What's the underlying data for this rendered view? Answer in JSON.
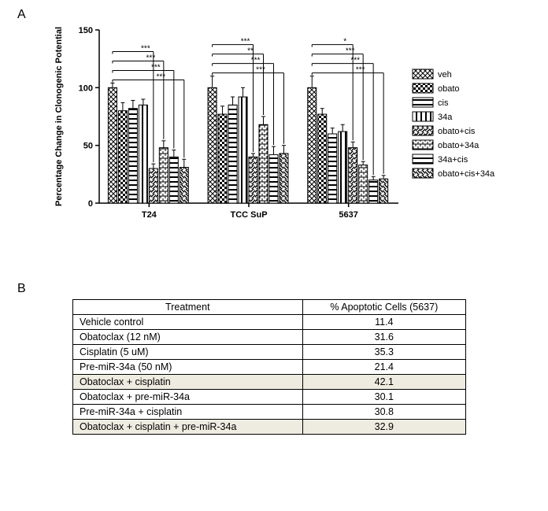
{
  "panelA_label": "A",
  "panelB_label": "B",
  "chart": {
    "type": "bar",
    "ylabel": "Percentage Change in Clonogenic Potential",
    "ylabel_fontsize": 11,
    "ylim": [
      0,
      150
    ],
    "ytick_step": 50,
    "yticks": [
      0,
      50,
      100,
      150
    ],
    "tick_fontsize": 11,
    "axis_color": "#000000",
    "background_color": "#ffffff",
    "bar_outline": "#000000",
    "bar_fill": "#000000",
    "groups": [
      "T24",
      "TCC SuP",
      "5637"
    ],
    "series": [
      {
        "key": "veh",
        "label": "veh",
        "pattern": "crosshatch"
      },
      {
        "key": "obato",
        "label": "obato",
        "pattern": "checker"
      },
      {
        "key": "cis",
        "label": "cis",
        "pattern": "hstripe"
      },
      {
        "key": "34a",
        "label": "34a",
        "pattern": "vstripe"
      },
      {
        "key": "obato_cis",
        "label": "obato+cis",
        "pattern": "diag1"
      },
      {
        "key": "obato_34a",
        "label": "obato+34a",
        "pattern": "brick"
      },
      {
        "key": "34a_cis",
        "label": "34a+cis",
        "pattern": "hstripe2"
      },
      {
        "key": "obato_cis_34a",
        "label": "obato+cis+34a",
        "pattern": "diag2"
      }
    ],
    "data": {
      "T24": {
        "veh": [
          100,
          4
        ],
        "obato": [
          80,
          7
        ],
        "cis": [
          82,
          7
        ],
        "34a": [
          85,
          5
        ],
        "obato_cis": [
          30,
          4
        ],
        "obato_34a": [
          48,
          6
        ],
        "34a_cis": [
          40,
          6
        ],
        "obato_cis_34a": [
          31,
          7
        ]
      },
      "TCC SuP": {
        "veh": [
          100,
          10
        ],
        "obato": [
          77,
          7
        ],
        "cis": [
          85,
          7
        ],
        "34a": [
          92,
          8
        ],
        "obato_cis": [
          40,
          3
        ],
        "obato_34a": [
          68,
          7
        ],
        "34a_cis": [
          42,
          7
        ],
        "obato_cis_34a": [
          43,
          7
        ]
      },
      "5637": {
        "veh": [
          100,
          10
        ],
        "obato": [
          77,
          5
        ],
        "cis": [
          60,
          5
        ],
        "34a": [
          62,
          6
        ],
        "obato_cis": [
          48,
          5
        ],
        "obato_34a": [
          33,
          3
        ],
        "34a_cis": [
          20,
          3
        ],
        "obato_cis_34a": [
          21,
          3
        ]
      }
    },
    "sig_markers": {
      "T24": [
        "***",
        "***",
        "***",
        "***"
      ],
      "TCC SuP": [
        "***",
        "**",
        "***",
        "***"
      ],
      "5637": [
        "*",
        "***",
        "***",
        "***"
      ]
    },
    "sig_base_bar": 0,
    "sig_target_bars": [
      4,
      5,
      6,
      7
    ],
    "bar_width": 0.85,
    "group_gap": 1.8,
    "legend": {
      "box_size": 14,
      "fontsize": 11,
      "position": "right"
    }
  },
  "table": {
    "columns": [
      "Treatment",
      "% Apoptotic Cells (5637)"
    ],
    "rows": [
      {
        "t": "Vehicle control",
        "v": "11.4",
        "hl": false
      },
      {
        "t": "Obatoclax (12 nM)",
        "v": "31.6",
        "hl": false
      },
      {
        "t": "Cisplatin (5 uM)",
        "v": "35.3",
        "hl": false
      },
      {
        "t": "Pre-miR-34a (50 nM)",
        "v": "21.4",
        "hl": false
      },
      {
        "t": "Obatoclax + cisplatin",
        "v": "42.1",
        "hl": true
      },
      {
        "t": "Obatoclax + pre-miR-34a",
        "v": "30.1",
        "hl": false
      },
      {
        "t": "Pre-miR-34a + cisplatin",
        "v": "30.8",
        "hl": false
      },
      {
        "t": "Obatoclax + cisplatin + pre-miR-34a",
        "v": "32.9",
        "hl": true
      }
    ],
    "col_widths": [
      "60%",
      "40%"
    ],
    "highlight_color": "#eeece1",
    "border_color": "#000000",
    "fontsize": 12.5
  }
}
